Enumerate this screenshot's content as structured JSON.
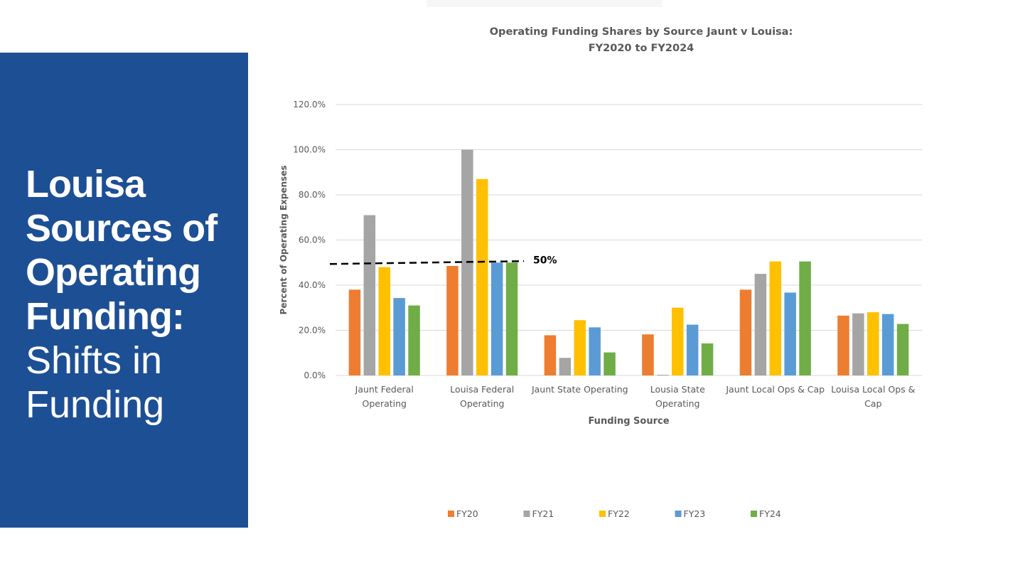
{
  "slide": {
    "title_bold_lines": [
      "Louisa",
      "Sources of",
      "Operating",
      "Funding:"
    ],
    "title_light_lines": [
      "Shifts in",
      "Funding"
    ]
  },
  "chart_data": {
    "type": "bar",
    "title": "Operating Funding Shares by Source Jaunt v Louisa:",
    "subtitle": "FY2020 to FY2024",
    "xlabel": "Funding Source",
    "ylabel": "Percent of Operating Expenses",
    "ylim": [
      0,
      120
    ],
    "yticks": [
      "0.0%",
      "20.0%",
      "40.0%",
      "60.0%",
      "80.0%",
      "100.0%",
      "120.0%"
    ],
    "grid": true,
    "legend_position": "bottom",
    "categories": [
      [
        "Jaunt Federal",
        "Operating"
      ],
      [
        "Louisa Federal",
        "Operating"
      ],
      [
        "Jaunt State Operating"
      ],
      [
        "Lousia State",
        "Operating"
      ],
      [
        "Jaunt Local Ops & Cap"
      ],
      [
        "Louisa Local Ops &",
        "Cap"
      ]
    ],
    "series": [
      {
        "name": "FY20",
        "color": "#ed7d31",
        "values": [
          38.0,
          48.5,
          17.8,
          18.2,
          38.0,
          26.5
        ]
      },
      {
        "name": "FY21",
        "color": "#a5a5a5",
        "values": [
          71.0,
          100.0,
          7.8,
          0.3,
          45.0,
          27.5
        ]
      },
      {
        "name": "FY22",
        "color": "#ffc000",
        "values": [
          48.0,
          87.0,
          24.5,
          30.0,
          50.5,
          28.0
        ]
      },
      {
        "name": "FY23",
        "color": "#5b9bd5",
        "values": [
          34.3,
          50.0,
          21.3,
          22.5,
          36.7,
          27.2
        ]
      },
      {
        "name": "FY24",
        "color": "#70ad47",
        "values": [
          31.0,
          50.0,
          10.2,
          14.2,
          50.5,
          22.8
        ]
      }
    ],
    "annotation": {
      "label": "50%",
      "value": 50,
      "style": "dashed"
    }
  }
}
